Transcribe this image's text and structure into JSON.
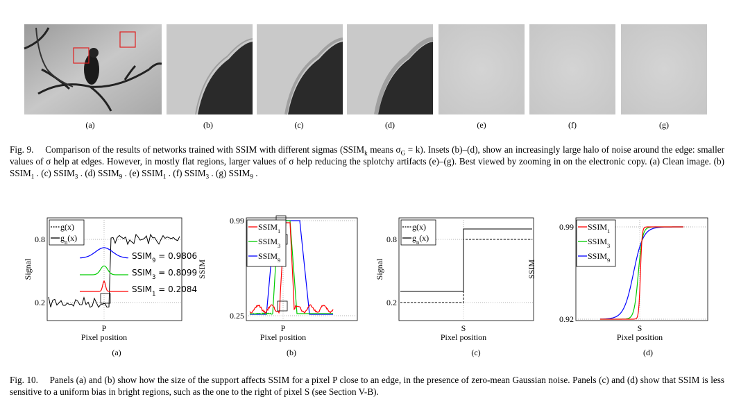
{
  "fig9": {
    "panels": [
      "(a)",
      "(b)",
      "(c)",
      "(d)",
      "(e)",
      "(f)",
      "(g)"
    ],
    "caption": [
      {
        "t": "Fig. 9.  Comparison of the results of networks trained with SSIM with different sigmas (SSIM"
      },
      {
        "sub": "k"
      },
      {
        "t": " means σ"
      },
      {
        "sub": "G"
      },
      {
        "t": " = k). Insets (b)–(d), show an increasingly large halo of noise around the edge: smaller values of σ help at edges. However, in mostly flat regions, larger values of σ help reducing the splotchy artifacts (e)–(g). Best viewed by zooming in on the electronic copy. (a) Clean image. (b) SSIM"
      },
      {
        "sub": "1"
      },
      {
        "t": " . (c) SSIM"
      },
      {
        "sub": "3"
      },
      {
        "t": " . (d) SSIM"
      },
      {
        "sub": "9"
      },
      {
        "t": " . (e) SSIM"
      },
      {
        "sub": "1"
      },
      {
        "t": " . (f) SSIM"
      },
      {
        "sub": "3"
      },
      {
        "t": " . (g) SSIM"
      },
      {
        "sub": "9"
      },
      {
        "t": " ."
      }
    ]
  },
  "fig10": {
    "panels": [
      {
        "legend": [
          [
            {
              "t": "g(x)"
            }
          ],
          [
            {
              "t": "g"
            },
            {
              "sub": "n"
            },
            {
              "t": "(x)"
            }
          ]
        ],
        "ylabel": "Signal",
        "yticks": [
          "0.8",
          "0.2"
        ],
        "xtick": "P",
        "xlabel": "Pixel position",
        "label": "(a)",
        "annotations": [
          [
            {
              "t": "SSIM"
            },
            {
              "sub": "9"
            },
            {
              "t": " = 0.9806"
            }
          ],
          [
            {
              "t": "SSIM"
            },
            {
              "sub": "3"
            },
            {
              "t": " = 0.8099"
            }
          ],
          [
            {
              "t": "SSIM"
            },
            {
              "sub": "1"
            },
            {
              "t": " = 0.2084"
            }
          ]
        ]
      },
      {
        "legend": [
          [
            {
              "t": "SSIM"
            },
            {
              "sub": "1"
            }
          ],
          [
            {
              "t": "SSIM"
            },
            {
              "sub": "3"
            }
          ],
          [
            {
              "t": "SSIM"
            },
            {
              "sub": "9"
            }
          ]
        ],
        "ylabel": "SSIM",
        "yticks": [
          "0.99",
          "0.25"
        ],
        "xtick": "P",
        "xlabel": "Pixel position",
        "label": "(b)"
      },
      {
        "legend": [
          [
            {
              "t": "g(x)"
            }
          ],
          [
            {
              "t": "g"
            },
            {
              "sub": "n"
            },
            {
              "t": "(x)"
            }
          ]
        ],
        "ylabel": "Signal",
        "yticks": [
          "0.8",
          "0.2"
        ],
        "xtick": "S",
        "xlabel": "Pixel position",
        "label": "(c)"
      },
      {
        "legend": [
          [
            {
              "t": "SSIM"
            },
            {
              "sub": "1"
            }
          ],
          [
            {
              "t": "SSIM"
            },
            {
              "sub": "3"
            }
          ],
          [
            {
              "t": "SSIM"
            },
            {
              "sub": "9"
            }
          ]
        ],
        "ylabel": "SSIM",
        "yticks": [
          "0.99",
          "0.92"
        ],
        "xtick": "S",
        "xlabel": "Pixel position",
        "label": "(d)"
      }
    ],
    "caption": [
      {
        "t": "Fig. 10.  Panels (a) and (b) show how the size of the support affects SSIM for a pixel P close to an edge, in the presence of zero-mean Gaussian noise. Panels (c) and (d) show that SSIM is less sensitive to a uniform bias in bright regions, such as the one to the right of pixel S (see Section V-B)."
      }
    ]
  }
}
